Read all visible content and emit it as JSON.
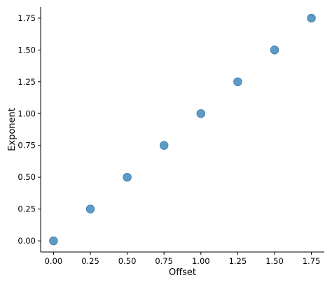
{
  "chart_data": {
    "type": "scatter",
    "title": "",
    "xlabel": "Offset",
    "ylabel": "Exponent",
    "x": [
      0.0,
      0.25,
      0.5,
      0.75,
      1.0,
      1.25,
      1.5,
      1.75
    ],
    "y": [
      0.0,
      0.25,
      0.5,
      0.75,
      1.0,
      1.25,
      1.5,
      1.75
    ],
    "xlim": [
      -0.0875,
      1.8375
    ],
    "ylim": [
      -0.0875,
      1.8375
    ],
    "xticks": [
      0.0,
      0.25,
      0.5,
      0.75,
      1.0,
      1.25,
      1.5,
      1.75
    ],
    "xtick_labels": [
      "0.00",
      "0.25",
      "0.50",
      "0.75",
      "1.00",
      "1.25",
      "1.50",
      "1.75"
    ],
    "yticks": [
      0.0,
      0.25,
      0.5,
      0.75,
      1.0,
      1.25,
      1.5,
      1.75
    ],
    "ytick_labels": [
      "0.00",
      "0.25",
      "0.50",
      "0.75",
      "1.00",
      "1.25",
      "1.50",
      "1.75"
    ],
    "grid": false,
    "marker_color": "#4c8fc0",
    "marker_edge_color": "#3a77a8"
  }
}
